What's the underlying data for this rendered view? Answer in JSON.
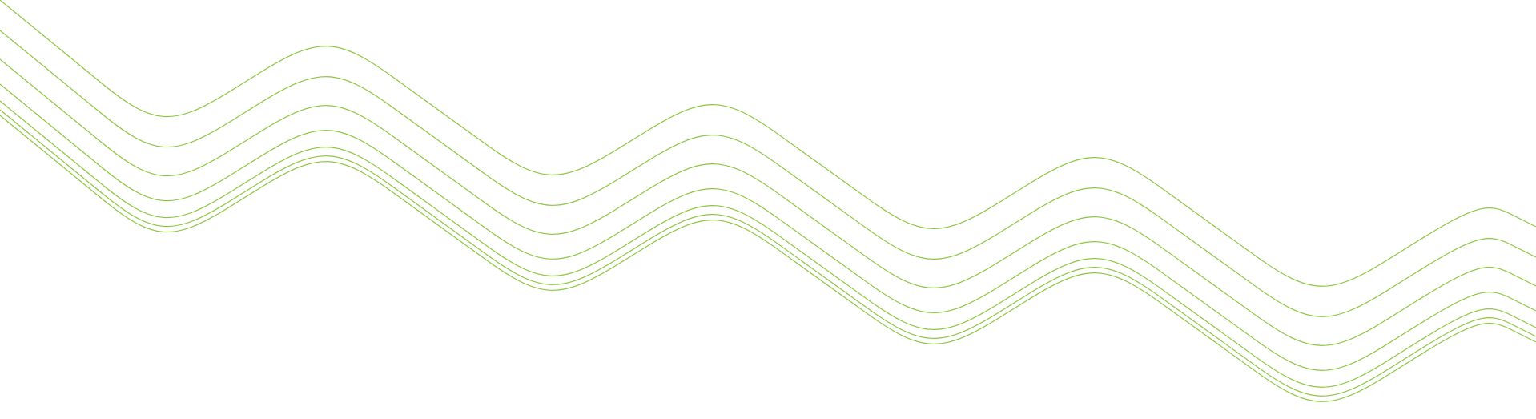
{
  "graphic": {
    "description_name": "decorative-wave-lines",
    "stroke_color": "#8cc63f",
    "line_count": 7
  }
}
